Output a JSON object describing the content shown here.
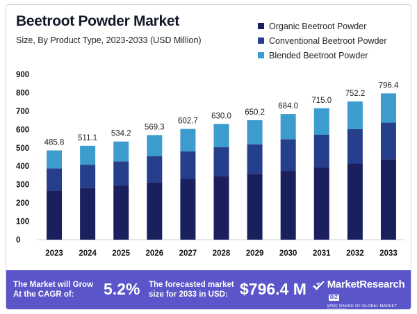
{
  "header": {
    "title": "Beetroot Powder Market",
    "subtitle": "Size, By Product Type, 2023-2033 (USD Million)"
  },
  "colors": {
    "organic": "#1a1f5e",
    "conventional": "#263f8c",
    "blended": "#3c9ccd",
    "banner": "#5a55c8"
  },
  "chart_data": {
    "type": "bar",
    "stacked": true,
    "title": "Beetroot Powder Market",
    "subtitle": "Size, By Product Type, 2023-2033 (USD Million)",
    "categories": [
      "2023",
      "2024",
      "2025",
      "2026",
      "2027",
      "2028",
      "2029",
      "2030",
      "2031",
      "2032",
      "2033"
    ],
    "totals": [
      "485.8",
      "511.1",
      "534.2",
      "569.3",
      "602.7",
      "630.0",
      "650.2",
      "684.0",
      "715.0",
      "752.2",
      "796.4"
    ],
    "series": [
      {
        "name": "Organic Beetroot Powder",
        "values": [
          267,
          281,
          293,
          313,
          331,
          347,
          357,
          376,
          393,
          414,
          438
        ]
      },
      {
        "name": "Conventional Beetroot Powder",
        "values": [
          121,
          127,
          133,
          142,
          150,
          157,
          162,
          171,
          178,
          188,
          199
        ]
      },
      {
        "name": "Blended Beetroot Powder",
        "values": [
          97.8,
          103.1,
          108.2,
          114.3,
          121.7,
          126.0,
          131.2,
          137.0,
          144.0,
          150.2,
          159.4
        ]
      }
    ],
    "yticks": [
      "0",
      "100",
      "200",
      "300",
      "400",
      "500",
      "600",
      "700",
      "800",
      "900"
    ],
    "ylim": [
      0,
      900
    ],
    "legend": "top-right",
    "grid": false
  },
  "banner": {
    "cagr_label": "The Market will Grow\nAt the CAGR of:",
    "cagr_value": "5.2%",
    "forecast_label": "The forecasted market\nsize for 2033 in USD:",
    "forecast_value": "$796.4 M",
    "brand": "MarketResearch",
    "brand_badge": "BIZ",
    "brand_tagline": "WIDE RANGE OF GLOBAL MARKET REPORTS"
  }
}
